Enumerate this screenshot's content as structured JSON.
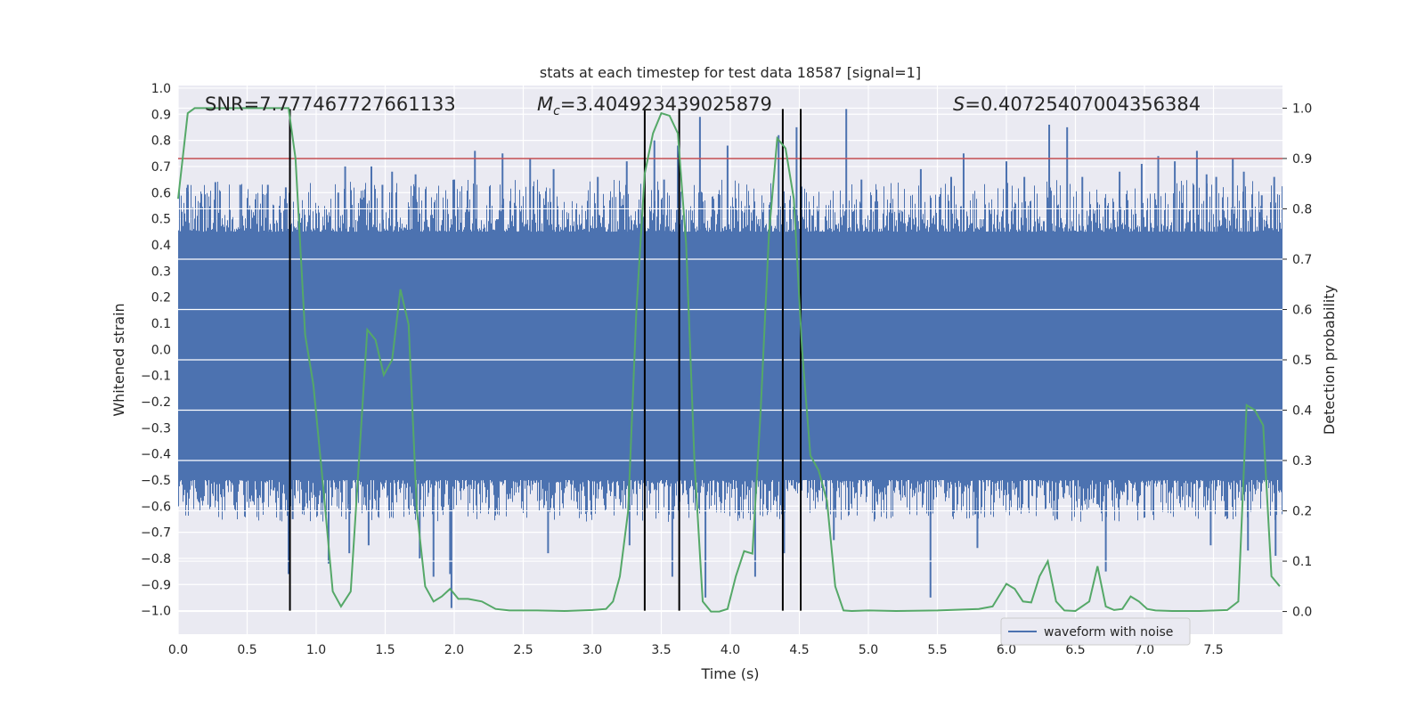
{
  "chart_data": {
    "type": "line",
    "title": "stats at each timestep for test data 18587 [signal=1]",
    "xlabel": "Time (s)",
    "ylabel_left": "Whitened strain",
    "ylabel_right": "Detection probability",
    "xlim": [
      0.0,
      8.0
    ],
    "ylim_left": [
      -1.09,
      1.01
    ],
    "ylim_right": [
      -0.045,
      1.045
    ],
    "x_ticks": [
      "0.0",
      "0.5",
      "1.0",
      "1.5",
      "2.0",
      "2.5",
      "3.0",
      "3.5",
      "4.0",
      "4.5",
      "5.0",
      "5.5",
      "6.0",
      "6.5",
      "7.0",
      "7.5"
    ],
    "x_tick_values": [
      0,
      0.5,
      1,
      1.5,
      2,
      2.5,
      3,
      3.5,
      4,
      4.5,
      5,
      5.5,
      6,
      6.5,
      7,
      7.5
    ],
    "y_left_ticks": [
      "1.0",
      "0.9",
      "0.8",
      "0.7",
      "0.6",
      "0.5",
      "0.4",
      "0.3",
      "0.2",
      "0.1",
      "0.0",
      "−0.1",
      "−0.2",
      "−0.3",
      "−0.4",
      "−0.5",
      "−0.6",
      "−0.7",
      "−0.8",
      "−0.9",
      "−1.0"
    ],
    "y_left_tick_values": [
      1,
      0.9,
      0.8,
      0.7,
      0.6,
      0.5,
      0.4,
      0.3,
      0.2,
      0.1,
      0,
      -0.1,
      -0.2,
      -0.3,
      -0.4,
      -0.5,
      -0.6,
      -0.7,
      -0.8,
      -0.9,
      -1.0
    ],
    "y_right_ticks": [
      "1.0",
      "0.9",
      "0.8",
      "0.7",
      "0.6",
      "0.5",
      "0.4",
      "0.3",
      "0.2",
      "0.1",
      "0.0"
    ],
    "y_right_tick_values": [
      1,
      0.9,
      0.8,
      0.7,
      0.6,
      0.5,
      0.4,
      0.3,
      0.2,
      0.1,
      0
    ],
    "annotations": {
      "snr": "SNR=7.777467727661133",
      "mc_symbol": "M",
      "mc_sub": "c",
      "mc_value": "=3.404923439025879",
      "s_symbol": "S",
      "s_value": "=0.40725407004356384"
    },
    "legend": {
      "label": "waveform with noise",
      "location": "lower right"
    },
    "threshold": {
      "value": 0.9,
      "axis": "right",
      "color": "#c44e52"
    },
    "vlines": [
      0.81,
      3.38,
      3.63,
      4.38,
      4.51
    ],
    "waveform": {
      "name": "waveform with noise",
      "color": "#4c72b0",
      "duration": 8.0,
      "envelope_top": 0.45,
      "envelope_bottom": -0.5,
      "peaks": [
        [
          0.07,
          0.63
        ],
        [
          0.27,
          0.64
        ],
        [
          0.45,
          0.63
        ],
        [
          0.65,
          0.63
        ],
        [
          0.78,
          0.62
        ],
        [
          0.8,
          -0.86
        ],
        [
          0.83,
          -0.65
        ],
        [
          1.09,
          -0.82
        ],
        [
          1.16,
          0.6
        ],
        [
          1.21,
          0.7
        ],
        [
          1.24,
          -0.78
        ],
        [
          1.4,
          0.7
        ],
        [
          1.38,
          -0.75
        ],
        [
          1.48,
          0.63
        ],
        [
          1.55,
          0.68
        ],
        [
          1.72,
          0.67
        ],
        [
          1.75,
          -0.8
        ],
        [
          1.85,
          -0.87
        ],
        [
          1.97,
          -0.86
        ],
        [
          1.98,
          -0.99
        ],
        [
          2.0,
          0.65
        ],
        [
          2.15,
          0.76
        ],
        [
          2.35,
          0.75
        ],
        [
          2.55,
          0.73
        ],
        [
          2.68,
          -0.78
        ],
        [
          2.72,
          0.69
        ],
        [
          3.04,
          0.66
        ],
        [
          3.25,
          0.72
        ],
        [
          3.27,
          -0.75
        ],
        [
          3.45,
          0.8
        ],
        [
          3.52,
          0.65
        ],
        [
          3.58,
          -0.87
        ],
        [
          3.62,
          0.78
        ],
        [
          3.78,
          0.89
        ],
        [
          3.82,
          -0.95
        ],
        [
          3.98,
          0.78
        ],
        [
          4.18,
          -0.87
        ],
        [
          4.35,
          0.82
        ],
        [
          4.39,
          -0.78
        ],
        [
          4.48,
          0.85
        ],
        [
          4.51,
          0.78
        ],
        [
          4.75,
          -0.73
        ],
        [
          4.84,
          0.92
        ],
        [
          4.95,
          0.65
        ],
        [
          5.38,
          0.69
        ],
        [
          5.45,
          -0.95
        ],
        [
          5.6,
          0.66
        ],
        [
          5.69,
          0.75
        ],
        [
          5.79,
          -0.76
        ],
        [
          6.0,
          0.72
        ],
        [
          6.13,
          0.66
        ],
        [
          6.31,
          0.86
        ],
        [
          6.44,
          0.85
        ],
        [
          6.55,
          0.66
        ],
        [
          6.72,
          -0.85
        ],
        [
          6.82,
          0.68
        ],
        [
          6.98,
          0.71
        ],
        [
          7.1,
          0.74
        ],
        [
          7.22,
          0.72
        ],
        [
          7.38,
          0.76
        ],
        [
          7.45,
          0.67
        ],
        [
          7.48,
          -0.75
        ],
        [
          7.52,
          0.66
        ],
        [
          7.64,
          0.73
        ],
        [
          7.72,
          0.68
        ],
        [
          7.75,
          -0.77
        ],
        [
          7.85,
          0.59
        ],
        [
          7.94,
          0.66
        ],
        [
          7.95,
          -0.79
        ]
      ]
    },
    "detection": {
      "name": "Detection probability",
      "color": "#55a868",
      "x": [
        0.0,
        0.07,
        0.12,
        0.18,
        0.3,
        0.5,
        0.7,
        0.8,
        0.85,
        0.92,
        0.98,
        1.05,
        1.12,
        1.18,
        1.25,
        1.31,
        1.37,
        1.43,
        1.49,
        1.55,
        1.61,
        1.67,
        1.73,
        1.79,
        1.85,
        1.91,
        1.97,
        2.03,
        2.1,
        2.2,
        2.3,
        2.4,
        2.6,
        2.8,
        3.0,
        3.1,
        3.15,
        3.2,
        3.26,
        3.32,
        3.38,
        3.44,
        3.5,
        3.56,
        3.62,
        3.68,
        3.74,
        3.8,
        3.86,
        3.92,
        3.98,
        4.04,
        4.1,
        4.16,
        4.22,
        4.28,
        4.34,
        4.4,
        4.46,
        4.52,
        4.58,
        4.64,
        4.7,
        4.76,
        4.82,
        4.88,
        5.0,
        5.2,
        5.5,
        5.8,
        5.9,
        6.0,
        6.06,
        6.12,
        6.18,
        6.24,
        6.3,
        6.36,
        6.42,
        6.5,
        6.6,
        6.66,
        6.72,
        6.78,
        6.84,
        6.9,
        6.96,
        7.02,
        7.08,
        7.2,
        7.4,
        7.6,
        7.68,
        7.74,
        7.8,
        7.86,
        7.92,
        7.98
      ],
      "y": [
        0.82,
        0.99,
        1.0,
        1.0,
        1.0,
        1.0,
        1.0,
        1.0,
        0.9,
        0.55,
        0.45,
        0.25,
        0.04,
        0.01,
        0.04,
        0.3,
        0.56,
        0.54,
        0.47,
        0.5,
        0.64,
        0.57,
        0.2,
        0.05,
        0.02,
        0.03,
        0.045,
        0.025,
        0.025,
        0.02,
        0.005,
        0.002,
        0.002,
        0.001,
        0.003,
        0.005,
        0.02,
        0.07,
        0.2,
        0.6,
        0.87,
        0.95,
        0.99,
        0.985,
        0.95,
        0.73,
        0.3,
        0.02,
        0.0,
        0.0,
        0.005,
        0.07,
        0.12,
        0.115,
        0.4,
        0.75,
        0.94,
        0.92,
        0.82,
        0.52,
        0.31,
        0.28,
        0.22,
        0.05,
        0.002,
        0.001,
        0.002,
        0.001,
        0.002,
        0.005,
        0.01,
        0.055,
        0.045,
        0.02,
        0.018,
        0.07,
        0.1,
        0.02,
        0.002,
        0.001,
        0.02,
        0.09,
        0.01,
        0.003,
        0.005,
        0.03,
        0.02,
        0.005,
        0.002,
        0.001,
        0.001,
        0.003,
        0.02,
        0.41,
        0.4,
        0.37,
        0.07,
        0.05
      ]
    }
  }
}
